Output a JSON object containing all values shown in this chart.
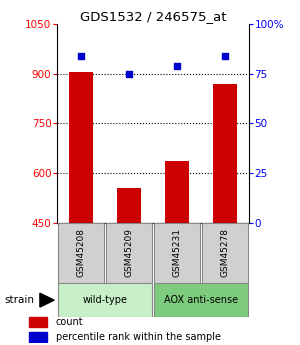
{
  "title": "GDS1532 / 246575_at",
  "samples": [
    "GSM45208",
    "GSM45209",
    "GSM45231",
    "GSM45278"
  ],
  "counts": [
    905,
    553,
    635,
    868
  ],
  "percentiles": [
    84,
    75,
    79,
    84
  ],
  "groups": [
    {
      "label": "wild-type",
      "indices": [
        0,
        1
      ],
      "color": "#c8f0c8"
    },
    {
      "label": "AOX anti-sense",
      "indices": [
        2,
        3
      ],
      "color": "#7dcc7d"
    }
  ],
  "bar_color": "#cc0000",
  "dot_color": "#0000cc",
  "left_ylim": [
    450,
    1050
  ],
  "right_ylim": [
    0,
    100
  ],
  "left_yticks": [
    450,
    600,
    750,
    900,
    1050
  ],
  "right_yticks": [
    0,
    25,
    50,
    75,
    100
  ],
  "right_yticklabels": [
    "0",
    "25",
    "50",
    "75",
    "100%"
  ],
  "grid_values": [
    600,
    750,
    900
  ],
  "bar_width": 0.5,
  "strain_label": "strain"
}
